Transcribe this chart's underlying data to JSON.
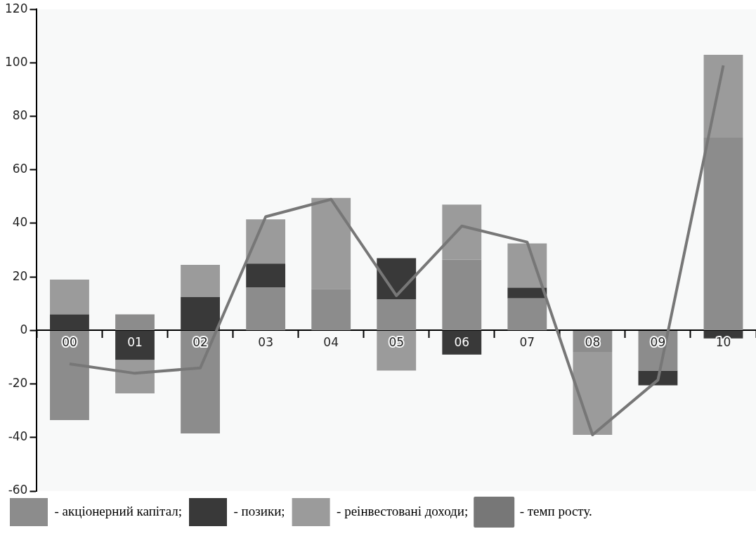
{
  "chart_data": {
    "type": "bar",
    "stacked": true,
    "categories": [
      "00",
      "01",
      "02",
      "03",
      "04",
      "05",
      "06",
      "07",
      "08",
      "09",
      "10"
    ],
    "series": [
      {
        "name": "- акціонерний капітал;",
        "color": "#8c8c8c",
        "values": [
          -33.5,
          6,
          -38.5,
          16,
          15.5,
          11.5,
          26.5,
          12,
          -8,
          -15,
          72
        ]
      },
      {
        "name": "- позики;",
        "color": "#393939",
        "values": [
          6,
          -11,
          12.5,
          9,
          0,
          15.5,
          -9,
          4,
          null,
          -5.5,
          -3
        ]
      },
      {
        "name": "- реінвестовані доходи;",
        "color": "#9b9b9b",
        "values": [
          13,
          -12.5,
          12,
          16.5,
          34,
          -15,
          20.5,
          16.5,
          -31,
          0,
          31
        ]
      },
      {
        "name": "- темп росту.",
        "type": "line",
        "color": "#777777",
        "values": [
          -12.5,
          -16,
          -14,
          42.5,
          49,
          13,
          39,
          33,
          -39,
          -18.5,
          99
        ]
      }
    ],
    "ylim": [
      -60,
      120
    ],
    "yticks": [
      -60,
      -40,
      -20,
      0,
      20,
      40,
      60,
      80,
      100,
      120
    ],
    "grid": false,
    "legend": "bottom",
    "marker": "none"
  }
}
